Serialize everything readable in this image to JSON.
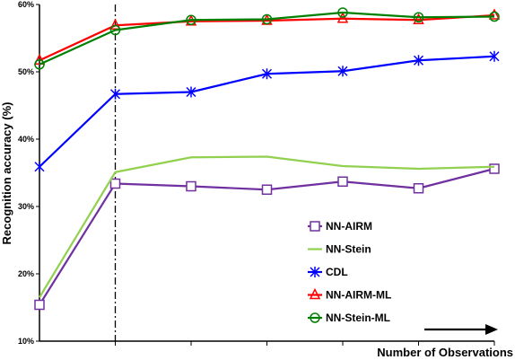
{
  "chart_data": {
    "type": "line",
    "title": "",
    "xlabel": "Number of Observations",
    "ylabel": "Recognition accuracy (%)",
    "ylim": [
      10,
      60
    ],
    "yticks": [
      10,
      20,
      30,
      40,
      50,
      60
    ],
    "ytick_labels": [
      "10%",
      "20%",
      "30%",
      "40%",
      "50%",
      "60%"
    ],
    "x": [
      1,
      2,
      3,
      4,
      5,
      6,
      7
    ],
    "grid": false,
    "legend_position": "bottom-right",
    "annotations": [
      "vertical dash-dot line at x = 2",
      "arrow pointing right above the x-axis label"
    ],
    "series": [
      {
        "name": "NN-AIRM",
        "color": "#7030a0",
        "marker": "square",
        "values": [
          15.4,
          33.4,
          33.0,
          32.5,
          33.7,
          32.7,
          35.6
        ]
      },
      {
        "name": "NN-Stein",
        "color": "#92d050",
        "marker": "none",
        "values": [
          16.5,
          35.1,
          37.3,
          37.4,
          36.0,
          35.6,
          35.9
        ]
      },
      {
        "name": "CDL",
        "color": "#0000ff",
        "marker": "asterisk",
        "values": [
          35.9,
          46.7,
          47.0,
          49.7,
          50.1,
          51.7,
          52.3
        ]
      },
      {
        "name": "NN-AIRM-ML",
        "color": "#ff0000",
        "marker": "triangle",
        "values": [
          51.7,
          56.9,
          57.5,
          57.6,
          57.9,
          57.7,
          58.4
        ]
      },
      {
        "name": "NN-Stein-ML",
        "color": "#008000",
        "marker": "circle",
        "values": [
          51.1,
          56.2,
          57.7,
          57.8,
          58.8,
          58.1,
          58.2
        ]
      }
    ]
  }
}
